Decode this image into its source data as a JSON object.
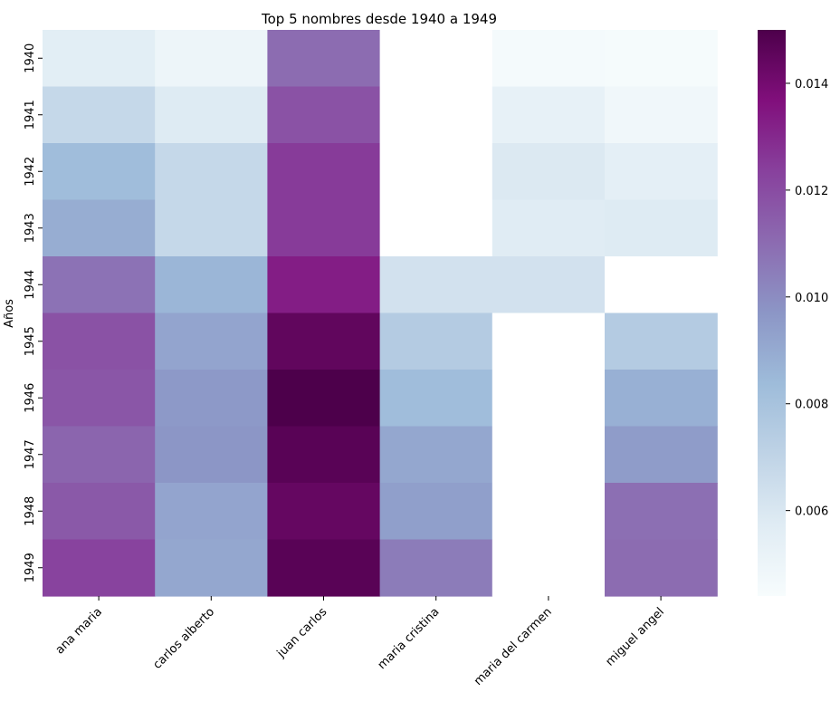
{
  "chart_data": {
    "type": "heatmap",
    "title": "Top 5 nombres desde 1940 a 1949",
    "xlabel": "",
    "ylabel": "Años",
    "columns": [
      "ana maria",
      "carlos alberto",
      "juan carlos",
      "maria cristina",
      "maria del carmen",
      "miguel angel"
    ],
    "rows": [
      "1940",
      "1941",
      "1942",
      "1943",
      "1944",
      "1945",
      "1946",
      "1947",
      "1948",
      "1949"
    ],
    "values": [
      [
        0.0056,
        0.005,
        0.011,
        null,
        0.0046,
        0.0045
      ],
      [
        0.0068,
        0.0058,
        0.0118,
        null,
        0.0053,
        0.0048
      ],
      [
        0.0083,
        0.0068,
        0.0125,
        null,
        0.0059,
        0.0055
      ],
      [
        0.0089,
        0.0068,
        0.0125,
        null,
        0.0057,
        0.0058
      ],
      [
        0.0108,
        0.0086,
        0.0133,
        0.0063,
        0.0063,
        null
      ],
      [
        0.0118,
        0.0092,
        0.0145,
        0.0075,
        null,
        0.0075
      ],
      [
        0.0117,
        0.0096,
        0.015,
        0.0083,
        null,
        0.0088
      ],
      [
        0.0112,
        0.0097,
        0.0147,
        0.0091,
        null,
        0.0095
      ],
      [
        0.0116,
        0.0092,
        0.0144,
        0.0094,
        null,
        0.0109
      ],
      [
        0.0123,
        0.0091,
        0.0147,
        0.0105,
        null,
        0.011
      ]
    ],
    "colorscale": {
      "vmin": 0.0044,
      "vmax": 0.015,
      "ticks": [
        "0.006",
        "0.008",
        "0.010",
        "0.012",
        "0.014"
      ],
      "tick_values": [
        0.006,
        0.008,
        0.01,
        0.012,
        0.014
      ],
      "colors": [
        "#f7fcfd",
        "#e0ecf4",
        "#bfd3e6",
        "#9ebcda",
        "#8c96c6",
        "#8c6bb1",
        "#88419d",
        "#810f7c",
        "#4d004b"
      ]
    },
    "missing_color": "#ffffff",
    "grid": false,
    "legend": "colorbar-right"
  }
}
